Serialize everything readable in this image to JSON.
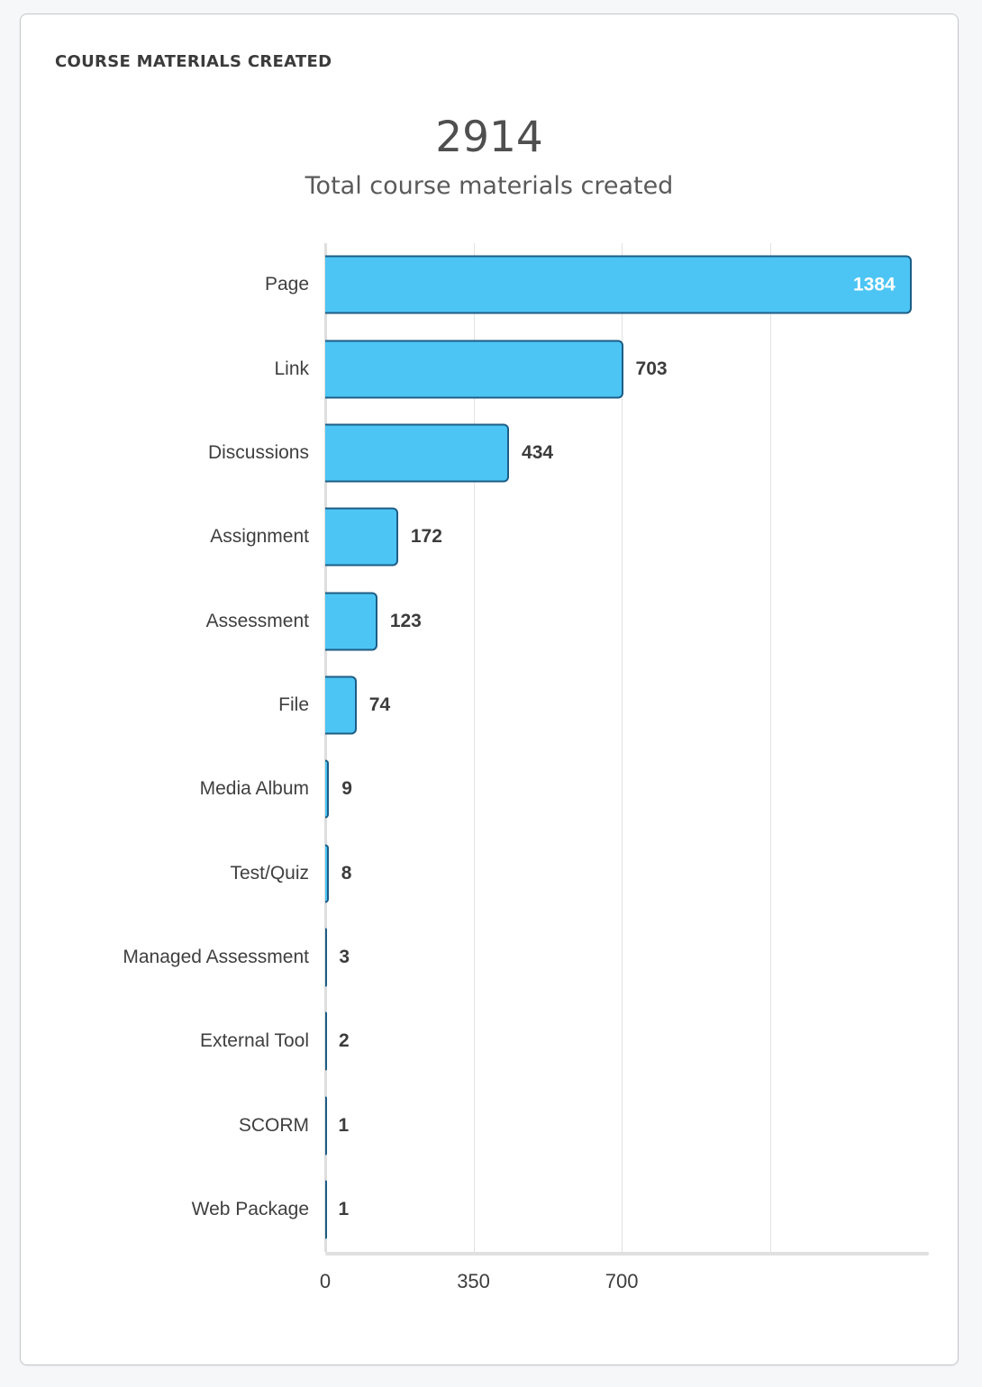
{
  "card": {
    "header": "COURSE MATERIALS CREATED",
    "total_value": "2914",
    "total_label": "Total course materials created"
  },
  "chart_data": {
    "type": "bar",
    "orientation": "horizontal",
    "title": "Course Materials Created",
    "total": 2914,
    "categories": [
      "Page",
      "Link",
      "Discussions",
      "Assignment",
      "Assessment",
      "File",
      "Media Album",
      "Test/Quiz",
      "Managed Assessment",
      "External Tool",
      "SCORM",
      "Web Package"
    ],
    "values": [
      1384,
      703,
      434,
      172,
      123,
      74,
      9,
      8,
      3,
      2,
      1,
      1
    ],
    "xlim": [
      0,
      1425
    ],
    "x_ticks": [
      0,
      350,
      700
    ],
    "gridline_values": [
      0,
      350,
      700,
      1050
    ],
    "grid": true,
    "value_labels": true,
    "legend": "none"
  },
  "colors": {
    "page_bg": "#f6f7f9",
    "card_bg": "#ffffff",
    "card_border": "#c5c7c9",
    "bar_fill": "#4cc5f4",
    "bar_border": "#1d5d85",
    "value_label": "#3c3c3c",
    "value_label_inside": "#ffffff",
    "grid": "#e2e2e2",
    "axis_line": "#e0e0e0"
  }
}
